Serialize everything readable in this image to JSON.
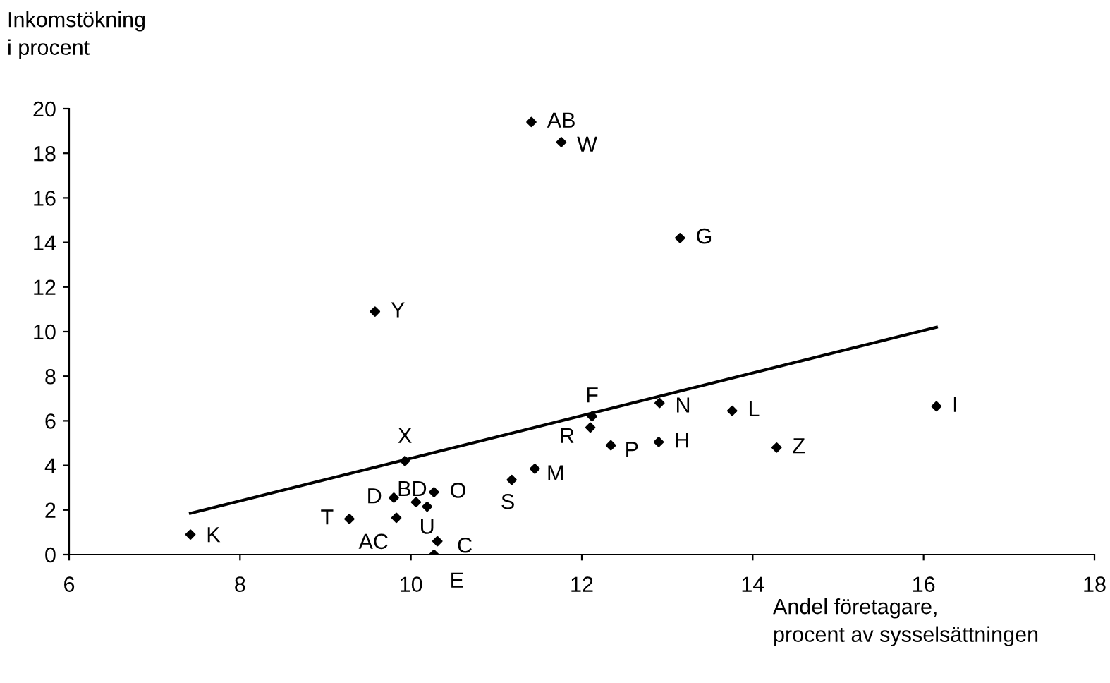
{
  "chart_data": {
    "type": "scatter",
    "xlabel": "Andel företagare,\nprocent av sysselsättningen",
    "ylabel": "Inkomstökning\ni procent",
    "series": [
      {
        "color": "#000000",
        "marker": "diamond",
        "x": [
          11.41,
          11.76,
          13.15,
          9.58,
          12.12,
          12.91,
          13.76,
          16.15,
          12.1,
          12.34,
          12.9,
          14.28,
          11.45,
          11.18,
          9.93,
          9.8,
          10.06,
          10.27,
          10.19,
          9.28,
          9.83,
          10.31,
          10.27,
          7.42
        ],
        "values": [
          19.4,
          18.5,
          14.2,
          10.9,
          6.2,
          6.8,
          6.45,
          6.65,
          5.7,
          4.9,
          5.05,
          4.8,
          3.85,
          3.35,
          4.2,
          2.55,
          2.35,
          2.8,
          2.15,
          1.6,
          1.65,
          0.6,
          0.0,
          0.9
        ]
      },
      {
        "type": "line",
        "color": "#000000",
        "x": [
          7.42,
          16.15
        ],
        "values": [
          1.85,
          10.2
        ]
      }
    ],
    "annotations": [
      {
        "text": "AB",
        "x": 11.41,
        "y": 19.4
      },
      {
        "text": "W",
        "x": 11.76,
        "y": 18.5
      },
      {
        "text": "G",
        "x": 13.15,
        "y": 14.2
      },
      {
        "text": "Y",
        "x": 9.58,
        "y": 10.9
      },
      {
        "text": "F",
        "x": 12.12,
        "y": 6.2
      },
      {
        "text": "N",
        "x": 12.91,
        "y": 6.8
      },
      {
        "text": "L",
        "x": 13.76,
        "y": 6.45
      },
      {
        "text": "I",
        "x": 16.15,
        "y": 6.65
      },
      {
        "text": "R",
        "x": 12.1,
        "y": 5.7
      },
      {
        "text": "P",
        "x": 12.34,
        "y": 4.9
      },
      {
        "text": "H",
        "x": 12.9,
        "y": 5.05
      },
      {
        "text": "Z",
        "x": 14.28,
        "y": 4.8
      },
      {
        "text": "M",
        "x": 11.45,
        "y": 3.85
      },
      {
        "text": "S",
        "x": 11.18,
        "y": 3.35
      },
      {
        "text": "X",
        "x": 9.93,
        "y": 4.2
      },
      {
        "text": "D",
        "x": 9.8,
        "y": 2.55
      },
      {
        "text": "BD",
        "x": 10.06,
        "y": 2.35
      },
      {
        "text": "O",
        "x": 10.27,
        "y": 2.8
      },
      {
        "text": "U",
        "x": 10.19,
        "y": 2.15
      },
      {
        "text": "T",
        "x": 9.28,
        "y": 1.6
      },
      {
        "text": "AC",
        "x": 9.83,
        "y": 1.65
      },
      {
        "text": "C",
        "x": 10.31,
        "y": 0.6
      },
      {
        "text": "E",
        "x": 10.27,
        "y": 0.0
      },
      {
        "text": "K",
        "x": 7.42,
        "y": 0.9
      }
    ],
    "xlim": [
      6,
      18
    ],
    "xticks": [
      6,
      8,
      10,
      12,
      14,
      16,
      18
    ],
    "ylim": [
      0,
      20
    ],
    "yticks": [
      0,
      2,
      4,
      6,
      8,
      10,
      12,
      14,
      16,
      18,
      20
    ],
    "grid": false
  }
}
